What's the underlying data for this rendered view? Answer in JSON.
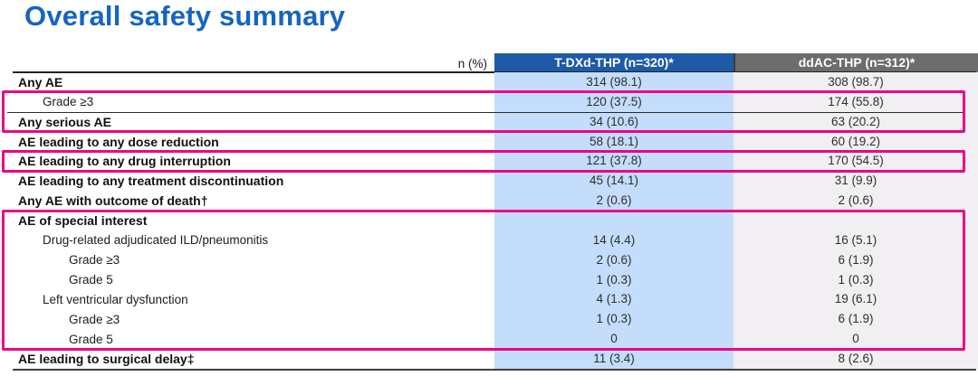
{
  "page": {
    "title": "Overall safety summary"
  },
  "colors": {
    "title_blue": "#1565c0",
    "header_blue": "#1e5aa8",
    "header_gray": "#6d6d6f",
    "col1_bg": "#c3ddfa",
    "col2_bg": "#f1eff1",
    "highlight_pink": "#ec008c"
  },
  "table": {
    "unit_label": "n (%)",
    "columns": [
      {
        "label": "T-DXd-THP (n=320)*"
      },
      {
        "label": "ddAC-THP (n=312)*"
      }
    ],
    "rows": [
      {
        "label": "Any AE",
        "indent": 0,
        "bold": true,
        "v1": "314 (98.1)",
        "v2": "308 (98.7)"
      },
      {
        "label": "Grade ≥3",
        "indent": 1,
        "bold": false,
        "v1": "120 (37.5)",
        "v2": "174 (55.8)"
      },
      {
        "label": "Any serious AE",
        "indent": 0,
        "bold": true,
        "v1": "34 (10.6)",
        "v2": "63 (20.2)"
      },
      {
        "label": "AE leading to any dose reduction",
        "indent": 0,
        "bold": true,
        "v1": "58 (18.1)",
        "v2": "60 (19.2)"
      },
      {
        "label": "AE leading to any drug interruption",
        "indent": 0,
        "bold": true,
        "v1": "121 (37.8)",
        "v2": "170 (54.5)"
      },
      {
        "label": "AE leading to any treatment discontinuation",
        "indent": 0,
        "bold": true,
        "v1": "45 (14.1)",
        "v2": "31 (9.9)"
      },
      {
        "label": "Any AE with outcome of death†",
        "indent": 0,
        "bold": true,
        "v1": "2 (0.6)",
        "v2": "2 (0.6)"
      },
      {
        "label": "AE of special interest",
        "indent": 0,
        "bold": true,
        "v1": "",
        "v2": ""
      },
      {
        "label": "Drug-related adjudicated ILD/pneumonitis",
        "indent": 1,
        "bold": false,
        "v1": "14 (4.4)",
        "v2": "16 (5.1)"
      },
      {
        "label": "Grade ≥3",
        "indent": 2,
        "bold": false,
        "v1": "2 (0.6)",
        "v2": "6 (1.9)"
      },
      {
        "label": "Grade 5",
        "indent": 2,
        "bold": false,
        "v1": "1 (0.3)",
        "v2": "1 (0.3)"
      },
      {
        "label": "Left ventricular dysfunction",
        "indent": 1,
        "bold": false,
        "v1": "4 (1.3)",
        "v2": "19 (6.1)"
      },
      {
        "label": "Grade ≥3",
        "indent": 2,
        "bold": false,
        "v1": "1 (0.3)",
        "v2": "6 (1.9)"
      },
      {
        "label": "Grade 5",
        "indent": 2,
        "bold": false,
        "v1": "0",
        "v2": "0"
      },
      {
        "label": "AE leading to surgical delay‡",
        "indent": 0,
        "bold": true,
        "v1": "11 (3.4)",
        "v2": "8 (2.6)"
      }
    ],
    "section_lines_before_rows": [
      2
    ],
    "highlight_boxes": [
      {
        "row_start": 1,
        "row_end": 2
      },
      {
        "row_start": 4,
        "row_end": 4
      },
      {
        "row_start": 7,
        "row_end": 13
      }
    ]
  }
}
